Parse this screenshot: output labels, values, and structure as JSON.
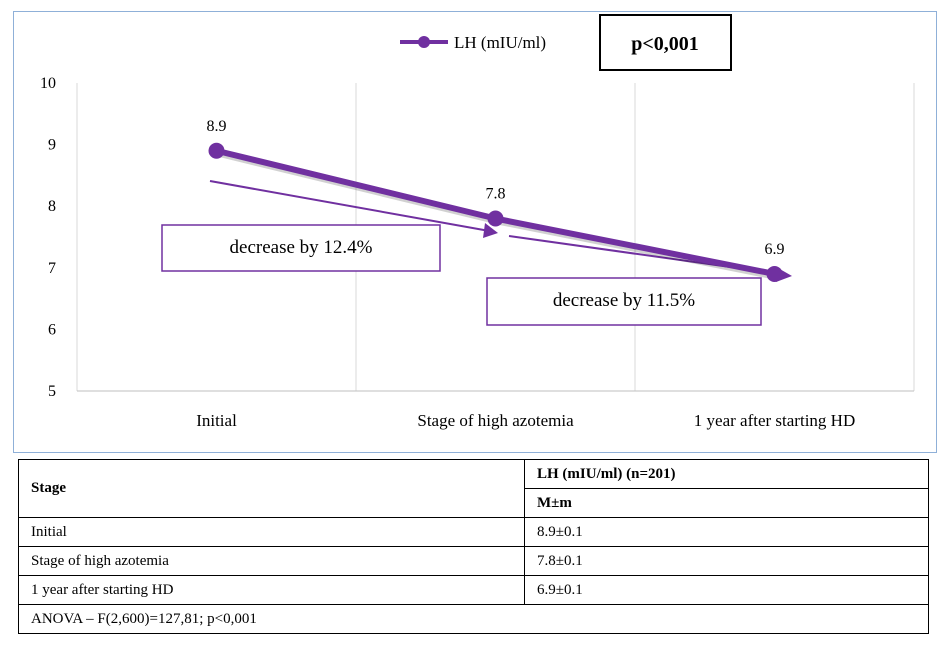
{
  "chart_data": {
    "type": "line",
    "categories": [
      "Initial",
      "Stage of high azotemia",
      "1 year after starting HD"
    ],
    "series": [
      {
        "name": "LH (mIU/ml)",
        "values": [
          8.9,
          7.8,
          6.9
        ],
        "color": "#7030a0"
      }
    ],
    "data_labels": [
      "8.9",
      "7.8",
      "6.9"
    ],
    "ylim": [
      5,
      10
    ],
    "yticks": [
      "5",
      "6",
      "7",
      "8",
      "9",
      "10"
    ],
    "legend_position": "top",
    "grid": "vertical",
    "annotations": {
      "p_value": "p<0,001",
      "decrease_1": "decrease by 12.4%",
      "decrease_2": "decrease by 11.5%"
    }
  },
  "table": {
    "stage_header": "Stage",
    "lh_header": "LH (mIU/ml) (n=201)",
    "stat_header": "M±m",
    "rows": [
      {
        "stage": "Initial",
        "value": "8.9±0.1"
      },
      {
        "stage": "Stage of high azotemia",
        "value": "7.8±0.1"
      },
      {
        "stage": "1 year after starting HD",
        "value": "6.9±0.1"
      }
    ],
    "footer": "ANOVA – F(2,600)=127,81; p<0,001"
  }
}
